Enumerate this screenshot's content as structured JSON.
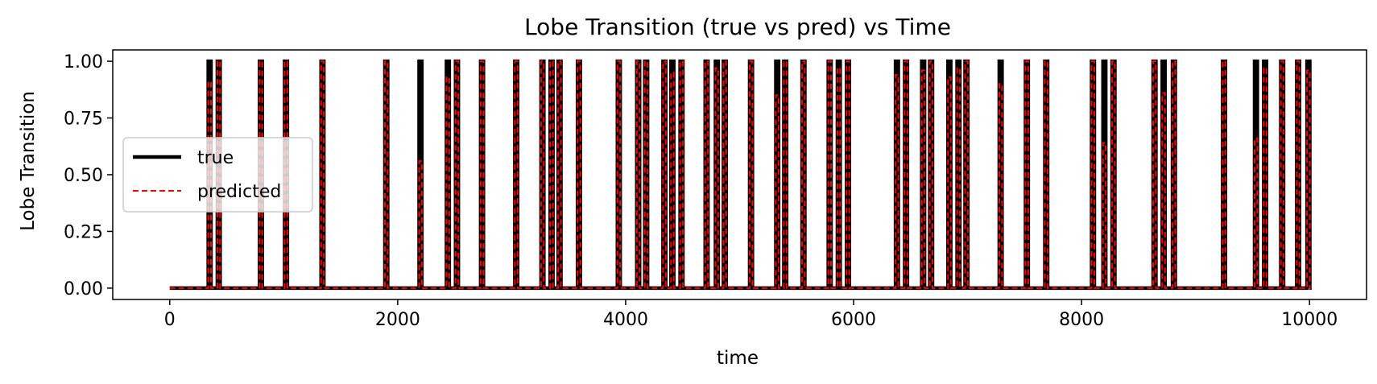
{
  "chart_data": {
    "type": "line",
    "title": "Lobe Transition (true vs pred) vs Time",
    "xlabel": "time",
    "ylabel": "Lobe Transition",
    "xlim": [
      -500,
      10500
    ],
    "ylim": [
      -0.05,
      1.05
    ],
    "x_ticks": [
      0,
      2000,
      4000,
      6000,
      8000,
      10000
    ],
    "x_tick_labels": [
      "0",
      "2000",
      "4000",
      "6000",
      "8000",
      "10000"
    ],
    "y_ticks": [
      0.0,
      0.25,
      0.5,
      0.75,
      1.0
    ],
    "y_tick_labels": [
      "0.00",
      "0.25",
      "0.50",
      "0.75",
      "1.00"
    ],
    "grid": false,
    "legend_position": "center-left",
    "x_range": [
      0,
      10000
    ],
    "series": [
      {
        "name": "true",
        "color": "#000000",
        "style": "solid",
        "spike_times": [
          350,
          430,
          800,
          1020,
          1340,
          1900,
          2200,
          2440,
          2520,
          2740,
          3040,
          3270,
          3350,
          3420,
          3590,
          3940,
          4110,
          4180,
          4340,
          4410,
          4490,
          4710,
          4800,
          4870,
          5100,
          5330,
          5400,
          5560,
          5790,
          5870,
          5950,
          6380,
          6460,
          6610,
          6680,
          6840,
          6920,
          6990,
          7290,
          7520,
          7690,
          8100,
          8200,
          8280,
          8640,
          8720,
          8810,
          9250,
          9530,
          9610,
          9760,
          9900,
          9990
        ],
        "values": [
          1,
          1,
          1,
          1,
          1,
          1,
          1,
          1,
          1,
          1,
          1,
          1,
          1,
          1,
          1,
          1,
          1,
          1,
          1,
          1,
          1,
          1,
          1,
          1,
          1,
          1,
          1,
          1,
          1,
          1,
          1,
          1,
          1,
          1,
          1,
          1,
          1,
          1,
          1,
          1,
          1,
          1,
          1,
          1,
          1,
          1,
          1,
          1,
          1,
          1,
          1,
          1,
          1
        ]
      },
      {
        "name": "predicted",
        "color": "#ff0000",
        "style": "dashed",
        "spike_times": [
          350,
          430,
          800,
          1020,
          1340,
          1900,
          2200,
          2440,
          2520,
          2740,
          3040,
          3270,
          3350,
          3420,
          3590,
          3940,
          4110,
          4180,
          4340,
          4410,
          4490,
          4710,
          4800,
          4870,
          5100,
          5330,
          5400,
          5560,
          5790,
          5870,
          5950,
          6380,
          6460,
          6610,
          6680,
          6840,
          6920,
          6990,
          7290,
          7520,
          7690,
          8100,
          8200,
          8280,
          8640,
          8720,
          8810,
          9250,
          9530,
          9610,
          9760,
          9900,
          9990
        ],
        "values": [
          0.91,
          1,
          1,
          1,
          1,
          1,
          0.56,
          0.93,
          1,
          1,
          1,
          1,
          1,
          1,
          1,
          1,
          1,
          1,
          1,
          0.95,
          1,
          1,
          0.97,
          1,
          1,
          0.85,
          1,
          1,
          1,
          0.97,
          1,
          0.94,
          1,
          0.96,
          1,
          0.93,
          0.97,
          1,
          0.9,
          1,
          1,
          1,
          0.64,
          1,
          1,
          0.86,
          1,
          1,
          0.66,
          0.97,
          1,
          1,
          0.96
        ]
      }
    ]
  }
}
